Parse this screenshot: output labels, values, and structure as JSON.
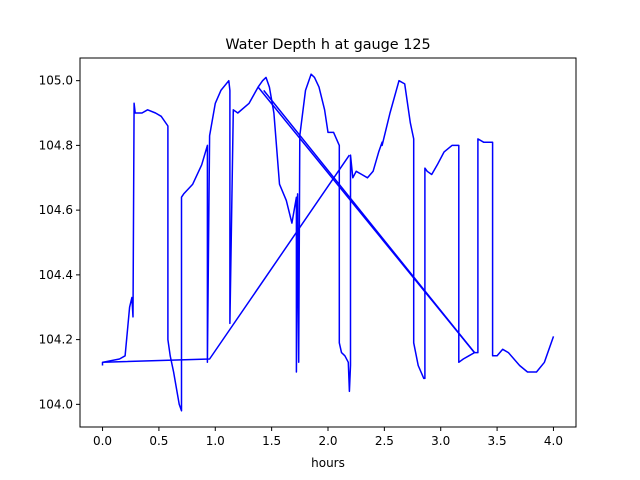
{
  "chart_data": {
    "type": "line",
    "title": "Water Depth h at gauge 125",
    "xlabel": "hours",
    "ylabel": "",
    "xlim": [
      -0.2,
      4.2
    ],
    "ylim": [
      103.93,
      105.07
    ],
    "xticks": [
      0.0,
      0.5,
      1.0,
      1.5,
      2.0,
      2.5,
      3.0,
      3.5,
      4.0
    ],
    "xtick_labels": [
      "0.0",
      "0.5",
      "1.0",
      "1.5",
      "2.0",
      "2.5",
      "3.0",
      "3.5",
      "4.0"
    ],
    "yticks": [
      104.0,
      104.2,
      104.4,
      104.6,
      104.8,
      105.0
    ],
    "ytick_labels": [
      "104.0",
      "104.2",
      "104.4",
      "104.6",
      "104.8",
      "105.0"
    ],
    "grid": false,
    "line_color": "#0000ff",
    "series": [
      {
        "name": "",
        "x": [
          0.0,
          0.0,
          0.15,
          0.2,
          0.24,
          0.26,
          0.27,
          0.28,
          0.29,
          0.3,
          0.35,
          0.4,
          0.47,
          0.52,
          0.58,
          0.58,
          0.6,
          0.63,
          0.68,
          0.7,
          0.7,
          0.72,
          0.8,
          0.88,
          0.93,
          0.93,
          0.95,
          1.0,
          1.05,
          1.12,
          1.13,
          1.13,
          1.16,
          1.2,
          1.3,
          1.38,
          1.42,
          1.45,
          1.48,
          1.52,
          1.57,
          1.63,
          1.68,
          1.72,
          1.72,
          1.73,
          1.74,
          1.75,
          1.8,
          1.85,
          1.88,
          1.92,
          1.97,
          2.0,
          2.05,
          2.1,
          2.1,
          2.12,
          2.15,
          2.18,
          2.19,
          2.2,
          2.2,
          2.22,
          2.25,
          2.3,
          2.35,
          2.4,
          2.45,
          2.48,
          2.48,
          2.55,
          2.63,
          2.68,
          2.73,
          2.76,
          2.76,
          2.8,
          2.85,
          2.86,
          2.86,
          2.88,
          2.92,
          2.97,
          3.03,
          3.1,
          3.16,
          3.16,
          3.2,
          3.25,
          3.3,
          3.33,
          3.33,
          3.38,
          3.45,
          3.46,
          3.46,
          3.5,
          3.55,
          3.6,
          3.7,
          3.77,
          3.85,
          3.92,
          4.0
        ],
        "y": [
          104.12,
          104.13,
          104.14,
          104.15,
          104.3,
          104.33,
          104.27,
          104.93,
          104.9,
          104.9,
          104.9,
          104.91,
          104.9,
          104.89,
          104.86,
          104.2,
          104.15,
          104.1,
          104.0,
          103.98,
          104.64,
          104.65,
          104.68,
          104.74,
          104.8,
          104.13,
          104.83,
          104.93,
          104.97,
          105.0,
          104.97,
          104.25,
          104.91,
          104.9,
          104.93,
          104.98,
          105.0,
          105.01,
          104.98,
          104.9,
          104.68,
          104.63,
          104.56,
          104.64,
          104.1,
          104.65,
          104.13,
          104.83,
          104.97,
          105.02,
          105.01,
          104.98,
          104.91,
          104.84,
          104.84,
          104.8,
          104.19,
          104.16,
          104.15,
          104.13,
          104.04,
          104.12,
          104.77,
          104.7,
          104.72,
          104.71,
          104.7,
          104.72,
          104.78,
          104.81,
          104.8,
          104.9,
          105.0,
          104.99,
          104.87,
          104.82,
          104.19,
          104.12,
          104.08,
          104.08,
          104.73,
          104.72,
          104.71,
          104.74,
          104.78,
          104.8,
          104.8,
          104.13,
          104.14,
          104.15,
          104.16,
          104.16,
          104.82,
          104.81,
          104.81,
          104.81,
          104.15,
          104.15,
          104.17,
          104.16,
          104.12,
          104.1,
          104.1,
          104.13,
          104.21
        ]
      }
    ],
    "extra_segments": [
      {
        "x": [
          0.0,
          0.95,
          2.19
        ],
        "y": [
          104.13,
          104.14,
          104.77
        ]
      },
      {
        "x": [
          1.38,
          3.3
        ],
        "y": [
          104.98,
          104.16
        ]
      },
      {
        "x": [
          1.43,
          3.3
        ],
        "y": [
          104.97,
          104.16
        ]
      }
    ]
  }
}
